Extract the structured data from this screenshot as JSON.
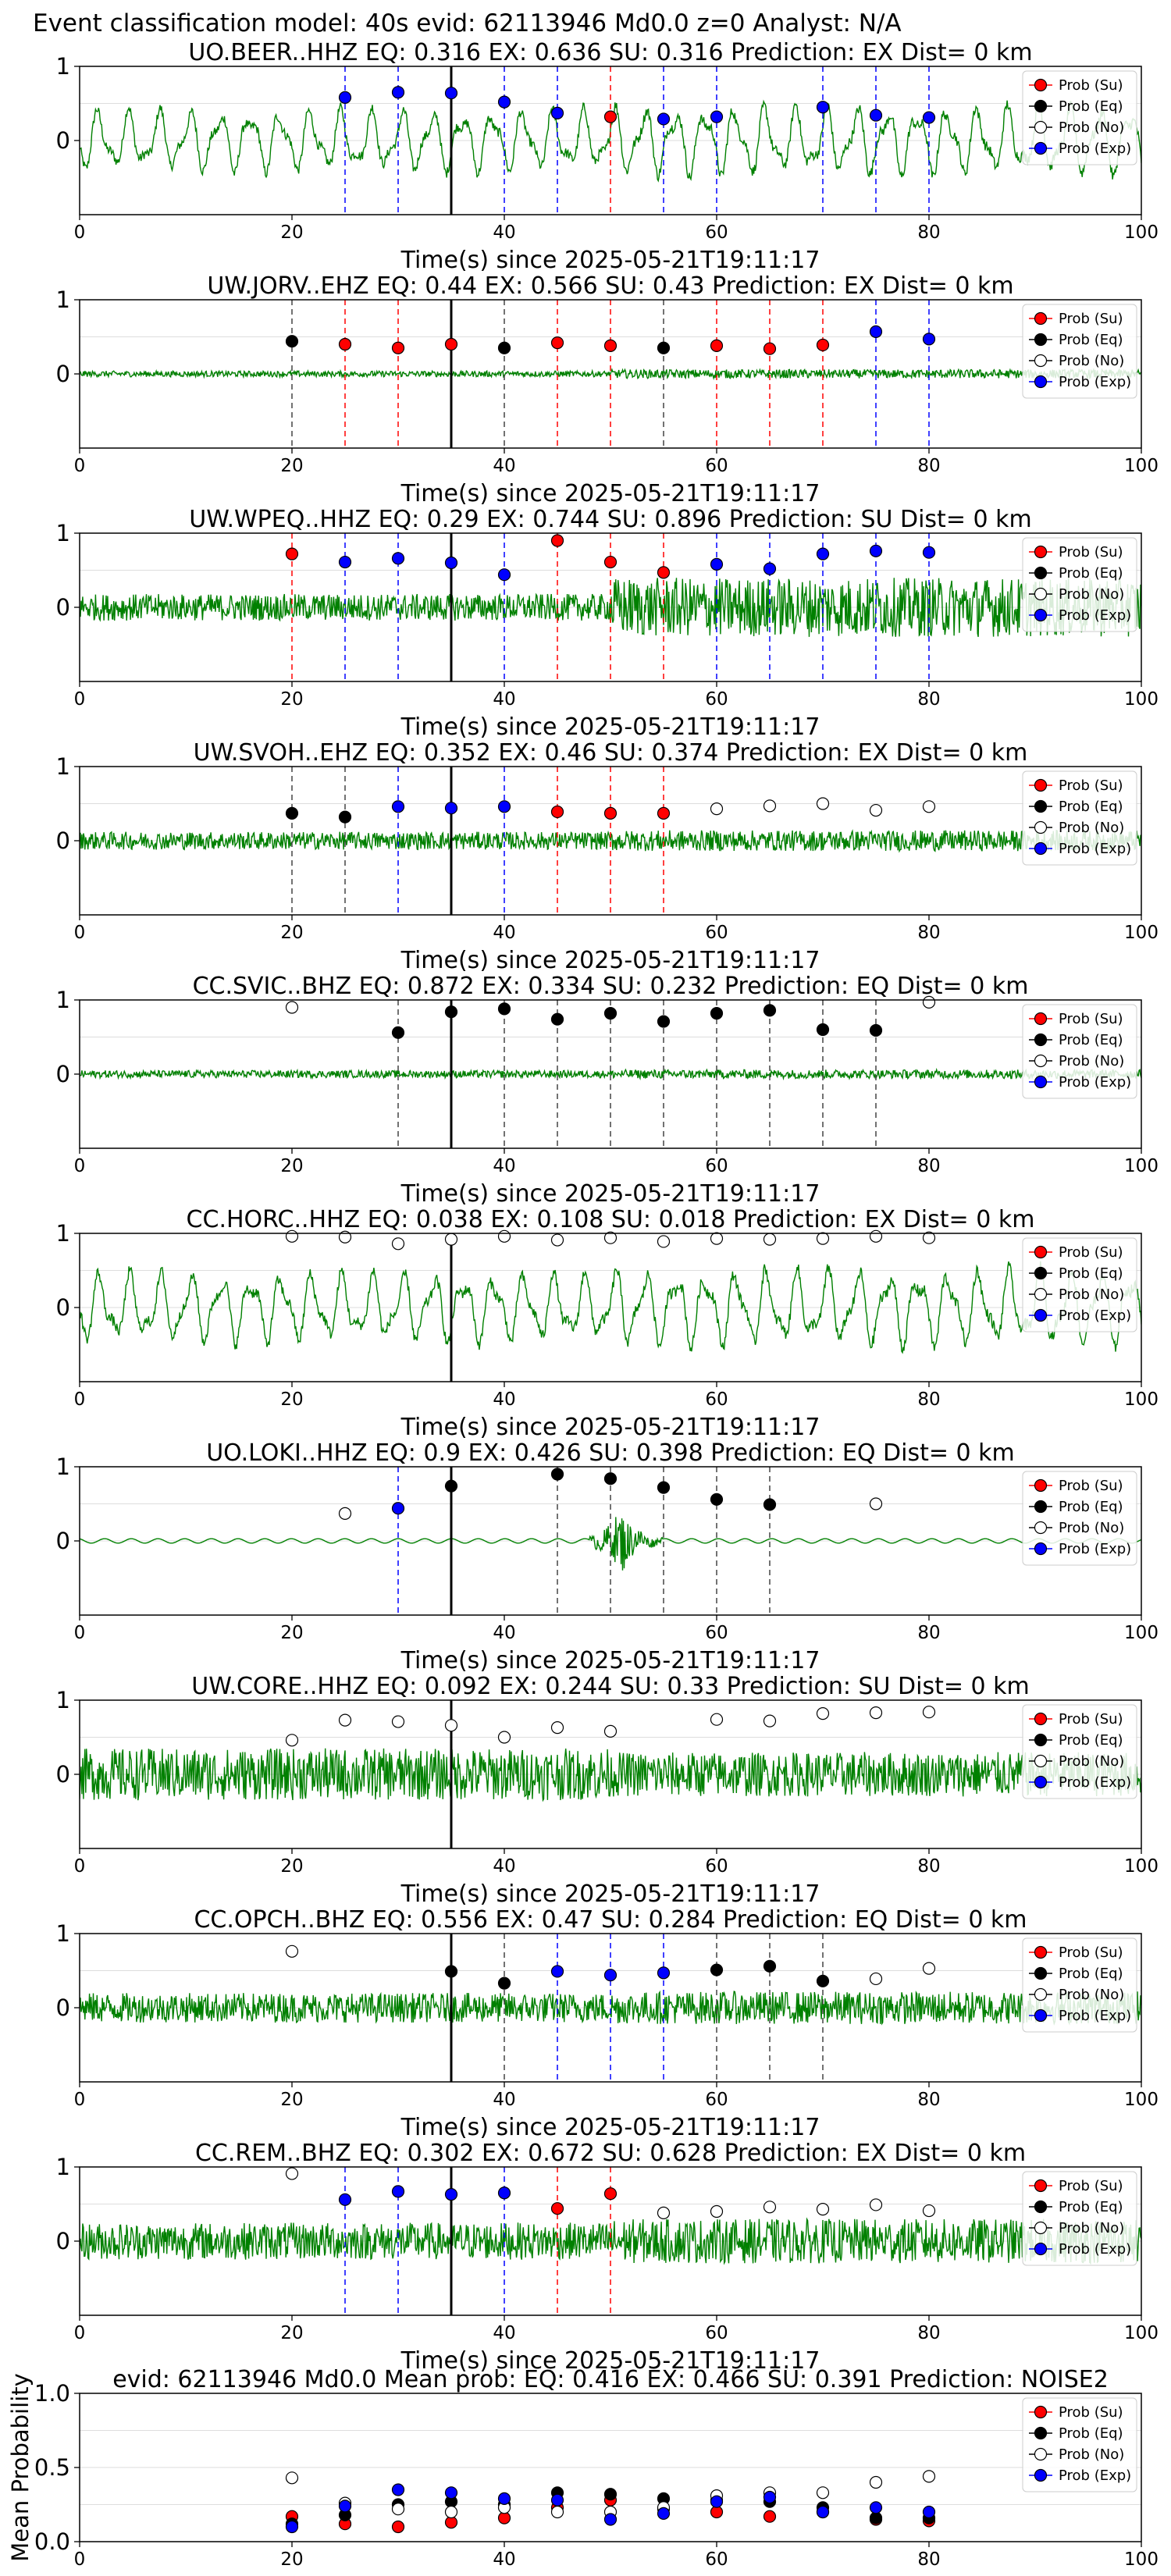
{
  "figure_title": "Event classification model: 40s evid: 62113946 Md0.0 z=0 Analyst: N/A",
  "colors": {
    "waveform": "#008000",
    "su": "#ff0000",
    "eq": "#000000",
    "no": "#ffffff",
    "exp": "#0000ff",
    "axis": "#000000",
    "grid": "#dddddd"
  },
  "legend_labels": [
    "Prob (Su)",
    "Prob (Eq)",
    "Prob (No)",
    "Prob (Exp)"
  ],
  "chart_data": [
    {
      "type": "line",
      "title": "UO.BEER..HHZ   EQ: 0.316  EX: 0.636  SU: 0.316   Prediction: EX    Dist= 0 km",
      "xlabel": "Time(s) since 2025-05-21T19:11:17",
      "xlim": [
        0,
        100
      ],
      "ylim": [
        -1,
        1
      ],
      "xticks": [
        "0",
        "20",
        "40",
        "60",
        "80",
        "100"
      ],
      "yticks": [
        "1",
        "0"
      ],
      "legend": "right",
      "waveform": {
        "style": "smooth",
        "amp": 0.45,
        "amp_late": 0.5
      },
      "pick_time": 35,
      "probs": [
        {
          "t": 25,
          "class": "exp",
          "p": 0.58
        },
        {
          "t": 30,
          "class": "exp",
          "p": 0.65
        },
        {
          "t": 35,
          "class": "exp",
          "p": 0.64
        },
        {
          "t": 40,
          "class": "exp",
          "p": 0.52
        },
        {
          "t": 45,
          "class": "exp",
          "p": 0.37
        },
        {
          "t": 50,
          "class": "su",
          "p": 0.32
        },
        {
          "t": 55,
          "class": "exp",
          "p": 0.29
        },
        {
          "t": 60,
          "class": "exp",
          "p": 0.32
        },
        {
          "t": 70,
          "class": "exp",
          "p": 0.45
        },
        {
          "t": 75,
          "class": "exp",
          "p": 0.34
        },
        {
          "t": 80,
          "class": "exp",
          "p": 0.31
        }
      ]
    },
    {
      "type": "line",
      "title": "UW.JORV..EHZ   EQ: 0.44  EX: 0.566  SU: 0.43   Prediction: EX    Dist= 0 km",
      "xlabel": "Time(s) since 2025-05-21T19:11:17",
      "xlim": [
        0,
        100
      ],
      "ylim": [
        -1,
        1
      ],
      "xticks": [
        "0",
        "20",
        "40",
        "60",
        "80",
        "100"
      ],
      "yticks": [
        "1",
        "0"
      ],
      "legend": "right",
      "waveform": {
        "style": "noise",
        "amp": 0.04,
        "amp_late": 0.06
      },
      "pick_time": 35,
      "probs": [
        {
          "t": 20,
          "class": "eq",
          "p": 0.44
        },
        {
          "t": 25,
          "class": "su",
          "p": 0.4
        },
        {
          "t": 30,
          "class": "su",
          "p": 0.35
        },
        {
          "t": 35,
          "class": "su",
          "p": 0.4
        },
        {
          "t": 40,
          "class": "eq",
          "p": 0.35
        },
        {
          "t": 45,
          "class": "su",
          "p": 0.42
        },
        {
          "t": 50,
          "class": "su",
          "p": 0.38
        },
        {
          "t": 55,
          "class": "eq",
          "p": 0.35
        },
        {
          "t": 60,
          "class": "su",
          "p": 0.38
        },
        {
          "t": 65,
          "class": "su",
          "p": 0.34
        },
        {
          "t": 70,
          "class": "su",
          "p": 0.39
        },
        {
          "t": 75,
          "class": "exp",
          "p": 0.57
        },
        {
          "t": 80,
          "class": "exp",
          "p": 0.47
        }
      ]
    },
    {
      "type": "line",
      "title": "UW.WPEQ..HHZ   EQ: 0.29  EX: 0.744  SU: 0.896   Prediction: SU    Dist= 0 km",
      "xlabel": "Time(s) since 2025-05-21T19:11:17",
      "xlim": [
        0,
        100
      ],
      "ylim": [
        -1,
        1
      ],
      "xticks": [
        "0",
        "20",
        "40",
        "60",
        "80",
        "100"
      ],
      "yticks": [
        "1",
        "0"
      ],
      "legend": "right",
      "waveform": {
        "style": "noise",
        "amp": 0.18,
        "amp_late": 0.4
      },
      "pick_time": 35,
      "probs": [
        {
          "t": 20,
          "class": "su",
          "p": 0.72
        },
        {
          "t": 25,
          "class": "exp",
          "p": 0.61
        },
        {
          "t": 30,
          "class": "exp",
          "p": 0.66
        },
        {
          "t": 35,
          "class": "exp",
          "p": 0.6
        },
        {
          "t": 40,
          "class": "exp",
          "p": 0.44
        },
        {
          "t": 45,
          "class": "su",
          "p": 0.9
        },
        {
          "t": 50,
          "class": "su",
          "p": 0.61
        },
        {
          "t": 55,
          "class": "su",
          "p": 0.47
        },
        {
          "t": 60,
          "class": "exp",
          "p": 0.58
        },
        {
          "t": 65,
          "class": "exp",
          "p": 0.52
        },
        {
          "t": 70,
          "class": "exp",
          "p": 0.72
        },
        {
          "t": 75,
          "class": "exp",
          "p": 0.76
        },
        {
          "t": 80,
          "class": "exp",
          "p": 0.74
        }
      ]
    },
    {
      "type": "line",
      "title": "UW.SVOH..EHZ   EQ: 0.352  EX: 0.46  SU: 0.374   Prediction: EX    Dist= 0 km",
      "xlabel": "Time(s) since 2025-05-21T19:11:17",
      "xlim": [
        0,
        100
      ],
      "ylim": [
        -1,
        1
      ],
      "xticks": [
        "0",
        "20",
        "40",
        "60",
        "80",
        "100"
      ],
      "yticks": [
        "1",
        "0"
      ],
      "legend": "right",
      "waveform": {
        "style": "noise",
        "amp": 0.12,
        "amp_late": 0.14
      },
      "pick_time": 35,
      "probs": [
        {
          "t": 20,
          "class": "eq",
          "p": 0.37
        },
        {
          "t": 25,
          "class": "eq",
          "p": 0.32
        },
        {
          "t": 30,
          "class": "exp",
          "p": 0.46
        },
        {
          "t": 35,
          "class": "exp",
          "p": 0.44
        },
        {
          "t": 40,
          "class": "exp",
          "p": 0.46
        },
        {
          "t": 45,
          "class": "su",
          "p": 0.39
        },
        {
          "t": 50,
          "class": "su",
          "p": 0.37
        },
        {
          "t": 55,
          "class": "su",
          "p": 0.37
        },
        {
          "t": 60,
          "class": "no",
          "p": 0.43
        },
        {
          "t": 65,
          "class": "no",
          "p": 0.47
        },
        {
          "t": 70,
          "class": "no",
          "p": 0.5
        },
        {
          "t": 75,
          "class": "no",
          "p": 0.41
        },
        {
          "t": 80,
          "class": "no",
          "p": 0.46
        }
      ]
    },
    {
      "type": "line",
      "title": "CC.SVIC..BHZ   EQ: 0.872  EX: 0.334  SU: 0.232   Prediction: EQ    Dist= 0 km",
      "xlabel": "Time(s) since 2025-05-21T19:11:17",
      "xlim": [
        0,
        100
      ],
      "ylim": [
        -1,
        1
      ],
      "xticks": [
        "0",
        "20",
        "40",
        "60",
        "80",
        "100"
      ],
      "yticks": [
        "1",
        "0"
      ],
      "legend": "right",
      "waveform": {
        "style": "noise",
        "amp": 0.05,
        "amp_late": 0.06
      },
      "pick_time": 35,
      "probs": [
        {
          "t": 20,
          "class": "no",
          "p": 0.9
        },
        {
          "t": 30,
          "class": "eq",
          "p": 0.56
        },
        {
          "t": 35,
          "class": "eq",
          "p": 0.84
        },
        {
          "t": 40,
          "class": "eq",
          "p": 0.88
        },
        {
          "t": 45,
          "class": "eq",
          "p": 0.74
        },
        {
          "t": 50,
          "class": "eq",
          "p": 0.82
        },
        {
          "t": 55,
          "class": "eq",
          "p": 0.71
        },
        {
          "t": 60,
          "class": "eq",
          "p": 0.82
        },
        {
          "t": 65,
          "class": "eq",
          "p": 0.86
        },
        {
          "t": 70,
          "class": "eq",
          "p": 0.6
        },
        {
          "t": 75,
          "class": "eq",
          "p": 0.59
        },
        {
          "t": 80,
          "class": "no",
          "p": 0.97
        }
      ]
    },
    {
      "type": "line",
      "title": "CC.HORC..HHZ   EQ: 0.038  EX: 0.108  SU: 0.018   Prediction: EX    Dist= 0 km",
      "xlabel": "Time(s) since 2025-05-21T19:11:17",
      "xlim": [
        0,
        100
      ],
      "ylim": [
        -1,
        1
      ],
      "xticks": [
        "0",
        "20",
        "40",
        "60",
        "80",
        "100"
      ],
      "yticks": [
        "1",
        "0"
      ],
      "legend": "right",
      "waveform": {
        "style": "smooth",
        "amp": 0.5,
        "amp_late": 0.55
      },
      "pick_time": 35,
      "probs": [
        {
          "t": 20,
          "class": "no",
          "p": 0.96
        },
        {
          "t": 25,
          "class": "no",
          "p": 0.95
        },
        {
          "t": 30,
          "class": "no",
          "p": 0.86
        },
        {
          "t": 35,
          "class": "no",
          "p": 0.92
        },
        {
          "t": 40,
          "class": "no",
          "p": 0.96
        },
        {
          "t": 45,
          "class": "no",
          "p": 0.91
        },
        {
          "t": 50,
          "class": "no",
          "p": 0.94
        },
        {
          "t": 55,
          "class": "no",
          "p": 0.89
        },
        {
          "t": 60,
          "class": "no",
          "p": 0.93
        },
        {
          "t": 65,
          "class": "no",
          "p": 0.92
        },
        {
          "t": 70,
          "class": "no",
          "p": 0.93
        },
        {
          "t": 75,
          "class": "no",
          "p": 0.96
        },
        {
          "t": 80,
          "class": "no",
          "p": 0.94
        }
      ]
    },
    {
      "type": "line",
      "title": "UO.LOKI..HHZ   EQ: 0.9  EX: 0.426  SU: 0.398   Prediction: EQ    Dist= 0 km",
      "xlabel": "Time(s) since 2025-05-21T19:11:17",
      "xlim": [
        0,
        100
      ],
      "ylim": [
        -1,
        1
      ],
      "xticks": [
        "0",
        "20",
        "40",
        "60",
        "80",
        "100"
      ],
      "yticks": [
        "1",
        "0"
      ],
      "legend": "right",
      "waveform": {
        "style": "quiet",
        "amp": 0.03,
        "amp_late": 0.03
      },
      "pick_time": 35,
      "probs": [
        {
          "t": 25,
          "class": "no",
          "p": 0.37
        },
        {
          "t": 30,
          "class": "exp",
          "p": 0.44
        },
        {
          "t": 35,
          "class": "eq",
          "p": 0.74
        },
        {
          "t": 45,
          "class": "eq",
          "p": 0.9
        },
        {
          "t": 50,
          "class": "eq",
          "p": 0.84
        },
        {
          "t": 55,
          "class": "eq",
          "p": 0.72
        },
        {
          "t": 60,
          "class": "eq",
          "p": 0.56
        },
        {
          "t": 65,
          "class": "eq",
          "p": 0.49
        },
        {
          "t": 75,
          "class": "no",
          "p": 0.5
        }
      ]
    },
    {
      "type": "line",
      "title": "UW.CORE..HHZ   EQ: 0.092  EX: 0.244  SU: 0.33   Prediction: SU    Dist= 0 km",
      "xlabel": "Time(s) since 2025-05-21T19:11:17",
      "xlim": [
        0,
        100
      ],
      "ylim": [
        -1,
        1
      ],
      "xticks": [
        "0",
        "20",
        "40",
        "60",
        "80",
        "100"
      ],
      "yticks": [
        "1",
        "0"
      ],
      "legend": "right",
      "waveform": {
        "style": "noise",
        "amp": 0.35,
        "amp_late": 0.3
      },
      "pick_time": 35,
      "probs": [
        {
          "t": 20,
          "class": "no",
          "p": 0.46
        },
        {
          "t": 25,
          "class": "no",
          "p": 0.73
        },
        {
          "t": 30,
          "class": "no",
          "p": 0.71
        },
        {
          "t": 35,
          "class": "no",
          "p": 0.66
        },
        {
          "t": 40,
          "class": "no",
          "p": 0.5
        },
        {
          "t": 45,
          "class": "no",
          "p": 0.63
        },
        {
          "t": 50,
          "class": "no",
          "p": 0.58
        },
        {
          "t": 60,
          "class": "no",
          "p": 0.74
        },
        {
          "t": 65,
          "class": "no",
          "p": 0.72
        },
        {
          "t": 70,
          "class": "no",
          "p": 0.82
        },
        {
          "t": 75,
          "class": "no",
          "p": 0.83
        },
        {
          "t": 80,
          "class": "no",
          "p": 0.84
        }
      ]
    },
    {
      "type": "line",
      "title": "CC.OPCH..BHZ   EQ: 0.556  EX: 0.47  SU: 0.284   Prediction: EQ    Dist= 0 km",
      "xlabel": "Time(s) since 2025-05-21T19:11:17",
      "xlim": [
        0,
        100
      ],
      "ylim": [
        -1,
        1
      ],
      "xticks": [
        "0",
        "20",
        "40",
        "60",
        "80",
        "100"
      ],
      "yticks": [
        "1",
        "0"
      ],
      "legend": "right",
      "waveform": {
        "style": "noise",
        "amp": 0.2,
        "amp_late": 0.22
      },
      "pick_time": 35,
      "probs": [
        {
          "t": 20,
          "class": "no",
          "p": 0.76
        },
        {
          "t": 35,
          "class": "eq",
          "p": 0.49
        },
        {
          "t": 40,
          "class": "eq",
          "p": 0.33
        },
        {
          "t": 45,
          "class": "exp",
          "p": 0.49
        },
        {
          "t": 50,
          "class": "exp",
          "p": 0.44
        },
        {
          "t": 55,
          "class": "exp",
          "p": 0.47
        },
        {
          "t": 60,
          "class": "eq",
          "p": 0.51
        },
        {
          "t": 65,
          "class": "eq",
          "p": 0.56
        },
        {
          "t": 70,
          "class": "eq",
          "p": 0.36
        },
        {
          "t": 75,
          "class": "no",
          "p": 0.39
        },
        {
          "t": 80,
          "class": "no",
          "p": 0.53
        }
      ]
    },
    {
      "type": "line",
      "title": "CC.REM..BHZ   EQ: 0.302  EX: 0.672  SU: 0.628   Prediction: EX    Dist= 0 km",
      "xlabel": "Time(s) since 2025-05-21T19:11:17",
      "xlim": [
        0,
        100
      ],
      "ylim": [
        -1,
        1
      ],
      "xticks": [
        "0",
        "20",
        "40",
        "60",
        "80",
        "100"
      ],
      "yticks": [
        "1",
        "0"
      ],
      "legend": "right",
      "waveform": {
        "style": "noise",
        "amp": 0.25,
        "amp_late": 0.3
      },
      "pick_time": 35,
      "probs": [
        {
          "t": 20,
          "class": "no",
          "p": 0.91
        },
        {
          "t": 25,
          "class": "exp",
          "p": 0.56
        },
        {
          "t": 30,
          "class": "exp",
          "p": 0.67
        },
        {
          "t": 35,
          "class": "exp",
          "p": 0.63
        },
        {
          "t": 40,
          "class": "exp",
          "p": 0.65
        },
        {
          "t": 45,
          "class": "su",
          "p": 0.44
        },
        {
          "t": 50,
          "class": "su",
          "p": 0.64
        },
        {
          "t": 55,
          "class": "no",
          "p": 0.38
        },
        {
          "t": 60,
          "class": "no",
          "p": 0.4
        },
        {
          "t": 65,
          "class": "no",
          "p": 0.46
        },
        {
          "t": 70,
          "class": "no",
          "p": 0.43
        },
        {
          "t": 75,
          "class": "no",
          "p": 0.49
        },
        {
          "t": 80,
          "class": "no",
          "p": 0.41
        }
      ]
    },
    {
      "type": "scatter",
      "title": "evid: 62113946  Md0.0   Mean prob:   EQ: 0.416  EX: 0.466  SU: 0.391   Prediction: NOISE2",
      "xlabel": "",
      "ylabel": "Mean Probability",
      "xlim": [
        0,
        100
      ],
      "ylim": [
        0,
        1
      ],
      "xticks": [
        "0",
        "20",
        "40",
        "60",
        "80",
        "100"
      ],
      "yticks": [
        "0.0",
        "0.5",
        "1.0"
      ],
      "legend": "right",
      "series": [
        {
          "name": "Prob (Su)",
          "class": "su",
          "x": [
            20,
            25,
            30,
            35,
            40,
            45,
            50,
            55,
            60,
            65,
            70,
            75,
            80
          ],
          "values": [
            0.17,
            0.12,
            0.1,
            0.13,
            0.16,
            0.23,
            0.28,
            0.22,
            0.2,
            0.17,
            0.2,
            0.15,
            0.14
          ]
        },
        {
          "name": "Prob (Eq)",
          "class": "eq",
          "x": [
            20,
            25,
            30,
            35,
            40,
            45,
            50,
            55,
            60,
            65,
            70,
            75,
            80
          ],
          "values": [
            0.12,
            0.18,
            0.25,
            0.27,
            0.25,
            0.33,
            0.32,
            0.29,
            0.28,
            0.27,
            0.23,
            0.16,
            0.16
          ]
        },
        {
          "name": "Prob (No)",
          "class": "no",
          "x": [
            20,
            25,
            30,
            35,
            40,
            45,
            50,
            55,
            60,
            65,
            70,
            75,
            80
          ],
          "values": [
            0.43,
            0.26,
            0.22,
            0.2,
            0.23,
            0.2,
            0.2,
            0.23,
            0.31,
            0.33,
            0.33,
            0.4,
            0.44
          ]
        },
        {
          "name": "Prob (Exp)",
          "class": "exp",
          "x": [
            20,
            25,
            30,
            35,
            40,
            45,
            50,
            55,
            60,
            65,
            70,
            75,
            80
          ],
          "values": [
            0.1,
            0.24,
            0.35,
            0.33,
            0.29,
            0.28,
            0.15,
            0.19,
            0.27,
            0.3,
            0.2,
            0.23,
            0.2
          ]
        }
      ]
    }
  ]
}
